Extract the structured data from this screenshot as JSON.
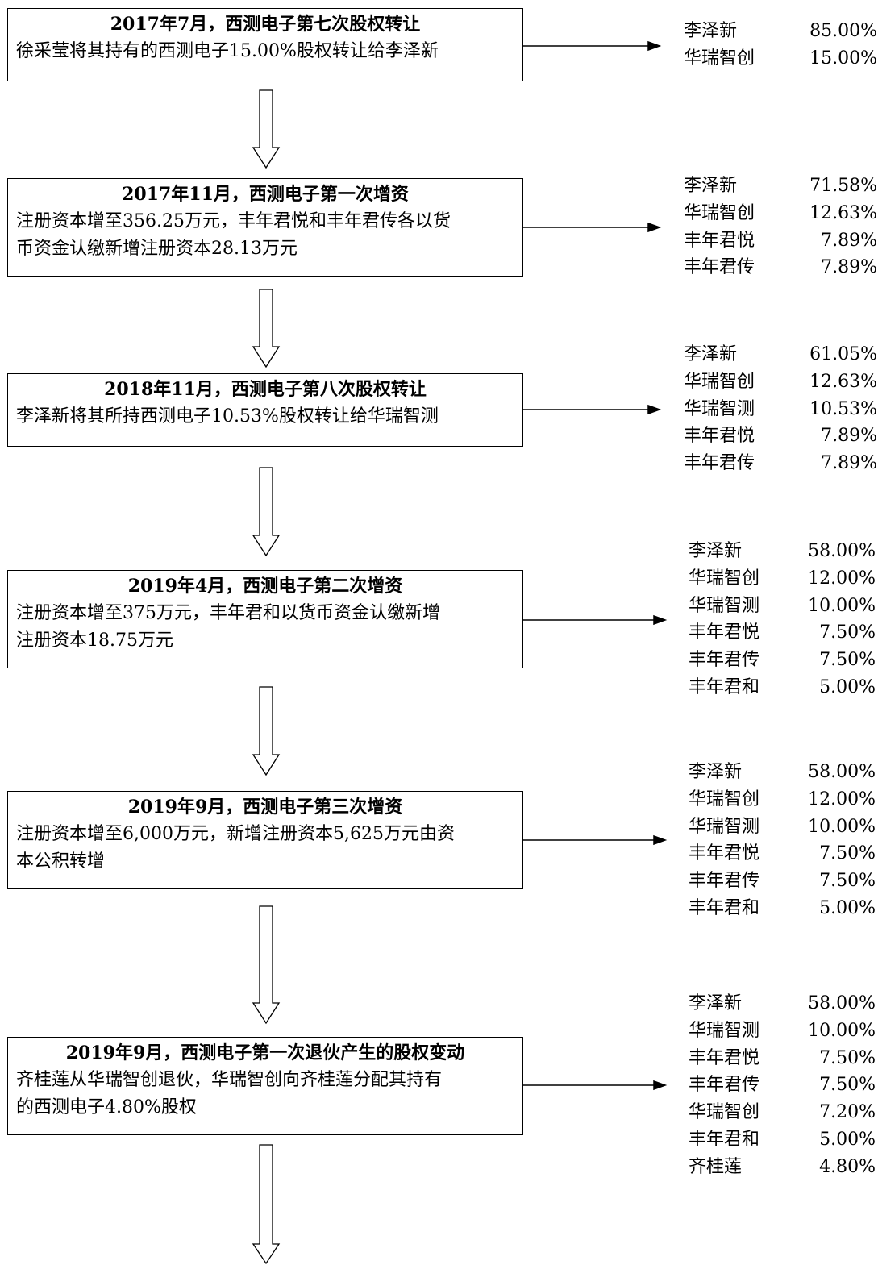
{
  "stages": [
    {
      "title": "2017年7月，西测电子第七次股权转让",
      "body": "徐采莹将其持有的西测电子15.00%股权转让给李泽新",
      "holders": [
        {
          "name": "李泽新",
          "pct": "85.00%"
        },
        {
          "name": "华瑞智创",
          "pct": "15.00%"
        }
      ]
    },
    {
      "title": "2017年11月，西测电子第一次增资",
      "body": "注册资本增至356.25万元，丰年君悦和丰年君传各以货\n币资金认缴新增注册资本28.13万元",
      "holders": [
        {
          "name": "李泽新",
          "pct": "71.58%"
        },
        {
          "name": "华瑞智创",
          "pct": "12.63%"
        },
        {
          "name": "丰年君悦",
          "pct": "7.89%"
        },
        {
          "name": "丰年君传",
          "pct": "7.89%"
        }
      ]
    },
    {
      "title": "2018年11月，西测电子第八次股权转让",
      "body": "李泽新将其所持西测电子10.53%股权转让给华瑞智测",
      "holders": [
        {
          "name": "李泽新",
          "pct": "61.05%"
        },
        {
          "name": "华瑞智创",
          "pct": "12.63%"
        },
        {
          "name": "华瑞智测",
          "pct": "10.53%"
        },
        {
          "name": "丰年君悦",
          "pct": "7.89%"
        },
        {
          "name": "丰年君传",
          "pct": "7.89%"
        }
      ]
    },
    {
      "title": "2019年4月，西测电子第二次增资",
      "body": "注册资本增至375万元，丰年君和以货币资金认缴新增\n注册资本18.75万元",
      "holders": [
        {
          "name": "李泽新",
          "pct": "58.00%"
        },
        {
          "name": "华瑞智创",
          "pct": "12.00%"
        },
        {
          "name": "华瑞智测",
          "pct": "10.00%"
        },
        {
          "name": "丰年君悦",
          "pct": "7.50%"
        },
        {
          "name": "丰年君传",
          "pct": "7.50%"
        },
        {
          "name": "丰年君和",
          "pct": "5.00%"
        }
      ]
    },
    {
      "title": "2019年9月，西测电子第三次增资",
      "body": "注册资本增至6,000万元，新增注册资本5,625万元由资\n本公积转增",
      "holders": [
        {
          "name": "李泽新",
          "pct": "58.00%"
        },
        {
          "name": "华瑞智创",
          "pct": "12.00%"
        },
        {
          "name": "华瑞智测",
          "pct": "10.00%"
        },
        {
          "name": "丰年君悦",
          "pct": "7.50%"
        },
        {
          "name": "丰年君传",
          "pct": "7.50%"
        },
        {
          "name": "丰年君和",
          "pct": "5.00%"
        }
      ]
    },
    {
      "title": "2019年9月，西测电子第一次退伙产生的股权变动",
      "body": "齐桂莲从华瑞智创退伙，华瑞智创向齐桂莲分配其持有\n的西测电子4.80%股权",
      "holders": [
        {
          "name": "李泽新",
          "pct": "58.00%"
        },
        {
          "name": "华瑞智测",
          "pct": "10.00%"
        },
        {
          "name": "丰年君悦",
          "pct": "7.50%"
        },
        {
          "name": "丰年君传",
          "pct": "7.50%"
        },
        {
          "name": "华瑞智创",
          "pct": "7.20%"
        },
        {
          "name": "丰年君和",
          "pct": "5.00%"
        },
        {
          "name": "齐桂莲",
          "pct": "4.80%"
        }
      ]
    }
  ]
}
